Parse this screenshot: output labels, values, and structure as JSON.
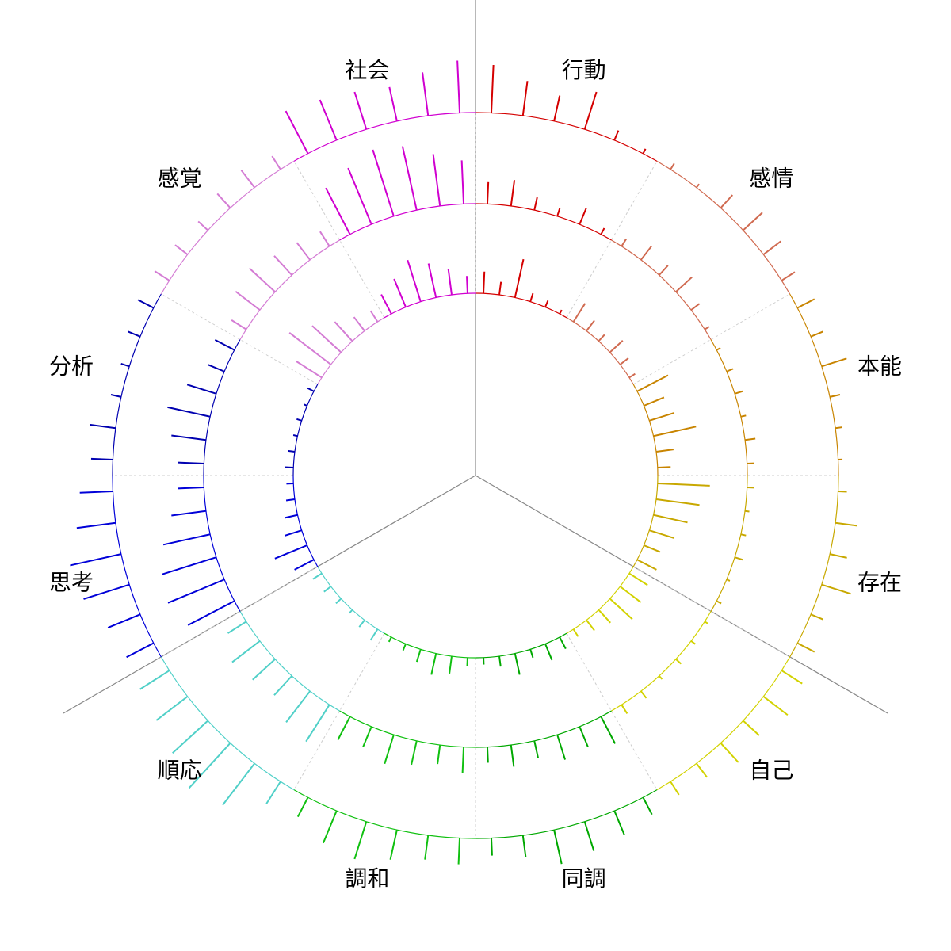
{
  "chart_data": {
    "type": "radial-bar",
    "categories": [
      "行動",
      "感情",
      "本能",
      "存在",
      "自己",
      "同調",
      "調和",
      "順応",
      "思考",
      "分析",
      "感覚",
      "社会"
    ],
    "colors": [
      "#d40000",
      "#d06a50",
      "#c88400",
      "#c8a800",
      "#d2d200",
      "#00a800",
      "#10c010",
      "#50d0c8",
      "#0000d8",
      "#0000b0",
      "#d47cd4",
      "#d000d0"
    ],
    "rlim": [
      0,
      100
    ],
    "rings": [
      {
        "values": [
          [
            25,
            15,
            45,
            10,
            8,
            5
          ],
          [
            25,
            15,
            10,
            20,
            12,
            8
          ],
          [
            40,
            25,
            30,
            50,
            20,
            15
          ],
          [
            60,
            50,
            40,
            30,
            20,
            25
          ],
          [
            25,
            30,
            35,
            20,
            15,
            10
          ],
          [
            15,
            20,
            10,
            25,
            12,
            8
          ],
          [
            10,
            20,
            25,
            15,
            8,
            6
          ],
          [
            15,
            10,
            5,
            8,
            10,
            12
          ],
          [
            25,
            40,
            20,
            15,
            10,
            8
          ],
          [
            10,
            8,
            5,
            6,
            4,
            8
          ],
          [
            35,
            60,
            45,
            30,
            20,
            15
          ],
          [
            25,
            35,
            50,
            40,
            30,
            20
          ]
        ]
      },
      {
        "values": [
          [
            25,
            30,
            15,
            10,
            20,
            8
          ],
          [
            10,
            20,
            15,
            25,
            12,
            6
          ],
          [
            5,
            8,
            10,
            6,
            12,
            8
          ],
          [
            8,
            5,
            6,
            10,
            4,
            6
          ],
          [
            4,
            6,
            8,
            5,
            10,
            12
          ],
          [
            35,
            25,
            30,
            20,
            25,
            18
          ],
          [
            30,
            22,
            28,
            35,
            25,
            30
          ],
          [
            50,
            45,
            30,
            35,
            40,
            25
          ],
          [
            60,
            70,
            65,
            55,
            40,
            30
          ],
          [
            30,
            40,
            50,
            35,
            20,
            25
          ],
          [
            20,
            35,
            40,
            30,
            25,
            20
          ],
          [
            60,
            70,
            80,
            75,
            60,
            50
          ]
        ]
      },
      {
        "values": [
          [
            55,
            40,
            30,
            45,
            12,
            6
          ],
          [
            8,
            5,
            20,
            30,
            25,
            18
          ],
          [
            22,
            15,
            30,
            12,
            8,
            5
          ],
          [
            10,
            25,
            20,
            35,
            15,
            22
          ],
          [
            28,
            35,
            25,
            30,
            20,
            18
          ],
          [
            22,
            30,
            35,
            40,
            25,
            20
          ],
          [
            30,
            28,
            35,
            45,
            40,
            25
          ],
          [
            30,
            60,
            70,
            55,
            45,
            40
          ],
          [
            35,
            40,
            55,
            60,
            45,
            38
          ],
          [
            25,
            30,
            12,
            10,
            15,
            20
          ],
          [
            20,
            18,
            15,
            22,
            25,
            18
          ],
          [
            55,
            50,
            45,
            40,
            50,
            60
          ]
        ]
      }
    ]
  }
}
